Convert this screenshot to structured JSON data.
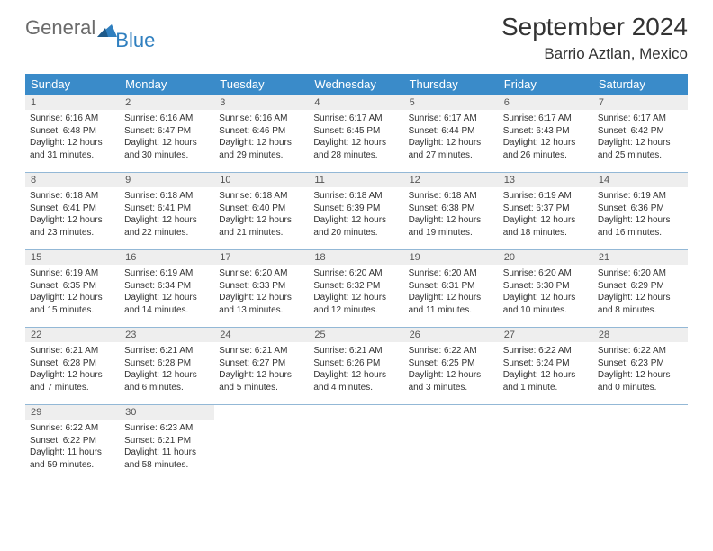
{
  "logo": {
    "part1": "General",
    "part2": "Blue"
  },
  "title": "September 2024",
  "location": "Barrio Aztlan, Mexico",
  "colors": {
    "header_bg": "#3a8bc9",
    "daynum_bg": "#eeeeee",
    "border": "#93b8d6",
    "logo_gray": "#6b6b6b",
    "logo_blue": "#2f7fbf"
  },
  "day_headers": [
    "Sunday",
    "Monday",
    "Tuesday",
    "Wednesday",
    "Thursday",
    "Friday",
    "Saturday"
  ],
  "days": [
    {
      "n": 1,
      "sr": "6:16 AM",
      "ss": "6:48 PM",
      "dl": "12 hours and 31 minutes."
    },
    {
      "n": 2,
      "sr": "6:16 AM",
      "ss": "6:47 PM",
      "dl": "12 hours and 30 minutes."
    },
    {
      "n": 3,
      "sr": "6:16 AM",
      "ss": "6:46 PM",
      "dl": "12 hours and 29 minutes."
    },
    {
      "n": 4,
      "sr": "6:17 AM",
      "ss": "6:45 PM",
      "dl": "12 hours and 28 minutes."
    },
    {
      "n": 5,
      "sr": "6:17 AM",
      "ss": "6:44 PM",
      "dl": "12 hours and 27 minutes."
    },
    {
      "n": 6,
      "sr": "6:17 AM",
      "ss": "6:43 PM",
      "dl": "12 hours and 26 minutes."
    },
    {
      "n": 7,
      "sr": "6:17 AM",
      "ss": "6:42 PM",
      "dl": "12 hours and 25 minutes."
    },
    {
      "n": 8,
      "sr": "6:18 AM",
      "ss": "6:41 PM",
      "dl": "12 hours and 23 minutes."
    },
    {
      "n": 9,
      "sr": "6:18 AM",
      "ss": "6:41 PM",
      "dl": "12 hours and 22 minutes."
    },
    {
      "n": 10,
      "sr": "6:18 AM",
      "ss": "6:40 PM",
      "dl": "12 hours and 21 minutes."
    },
    {
      "n": 11,
      "sr": "6:18 AM",
      "ss": "6:39 PM",
      "dl": "12 hours and 20 minutes."
    },
    {
      "n": 12,
      "sr": "6:18 AM",
      "ss": "6:38 PM",
      "dl": "12 hours and 19 minutes."
    },
    {
      "n": 13,
      "sr": "6:19 AM",
      "ss": "6:37 PM",
      "dl": "12 hours and 18 minutes."
    },
    {
      "n": 14,
      "sr": "6:19 AM",
      "ss": "6:36 PM",
      "dl": "12 hours and 16 minutes."
    },
    {
      "n": 15,
      "sr": "6:19 AM",
      "ss": "6:35 PM",
      "dl": "12 hours and 15 minutes."
    },
    {
      "n": 16,
      "sr": "6:19 AM",
      "ss": "6:34 PM",
      "dl": "12 hours and 14 minutes."
    },
    {
      "n": 17,
      "sr": "6:20 AM",
      "ss": "6:33 PM",
      "dl": "12 hours and 13 minutes."
    },
    {
      "n": 18,
      "sr": "6:20 AM",
      "ss": "6:32 PM",
      "dl": "12 hours and 12 minutes."
    },
    {
      "n": 19,
      "sr": "6:20 AM",
      "ss": "6:31 PM",
      "dl": "12 hours and 11 minutes."
    },
    {
      "n": 20,
      "sr": "6:20 AM",
      "ss": "6:30 PM",
      "dl": "12 hours and 10 minutes."
    },
    {
      "n": 21,
      "sr": "6:20 AM",
      "ss": "6:29 PM",
      "dl": "12 hours and 8 minutes."
    },
    {
      "n": 22,
      "sr": "6:21 AM",
      "ss": "6:28 PM",
      "dl": "12 hours and 7 minutes."
    },
    {
      "n": 23,
      "sr": "6:21 AM",
      "ss": "6:28 PM",
      "dl": "12 hours and 6 minutes."
    },
    {
      "n": 24,
      "sr": "6:21 AM",
      "ss": "6:27 PM",
      "dl": "12 hours and 5 minutes."
    },
    {
      "n": 25,
      "sr": "6:21 AM",
      "ss": "6:26 PM",
      "dl": "12 hours and 4 minutes."
    },
    {
      "n": 26,
      "sr": "6:22 AM",
      "ss": "6:25 PM",
      "dl": "12 hours and 3 minutes."
    },
    {
      "n": 27,
      "sr": "6:22 AM",
      "ss": "6:24 PM",
      "dl": "12 hours and 1 minute."
    },
    {
      "n": 28,
      "sr": "6:22 AM",
      "ss": "6:23 PM",
      "dl": "12 hours and 0 minutes."
    },
    {
      "n": 29,
      "sr": "6:22 AM",
      "ss": "6:22 PM",
      "dl": "11 hours and 59 minutes."
    },
    {
      "n": 30,
      "sr": "6:23 AM",
      "ss": "6:21 PM",
      "dl": "11 hours and 58 minutes."
    }
  ],
  "labels": {
    "sunrise": "Sunrise:",
    "sunset": "Sunset:",
    "daylight": "Daylight:"
  },
  "layout": {
    "start_weekday": 0,
    "rows": 5,
    "cols": 7
  }
}
